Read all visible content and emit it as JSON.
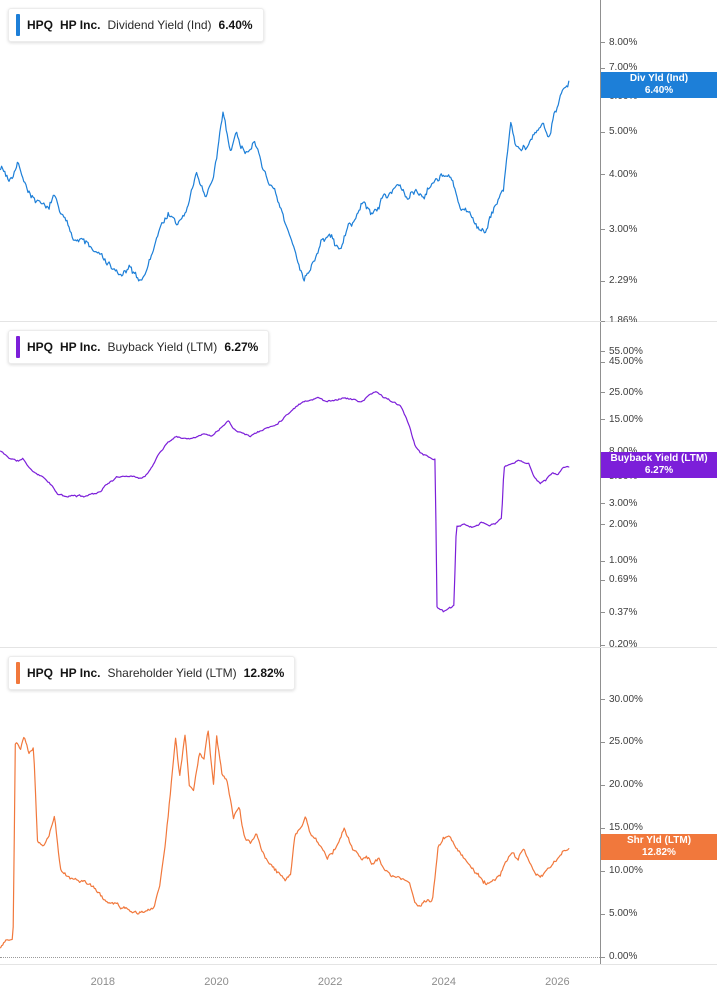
{
  "x_axis": {
    "labels": [
      "2018",
      "2020",
      "2022",
      "2024",
      "2026"
    ],
    "values": [
      2018,
      2020,
      2022,
      2024,
      2026
    ]
  },
  "panels": [
    {
      "legend": {
        "ticker": "HPQ",
        "company": "HP Inc.",
        "metric": "Dividend Yield (Ind)",
        "value": "6.40%"
      },
      "badge": {
        "line1": "Div Yld (Ind)",
        "line2": "6.40%"
      }
    },
    {
      "legend": {
        "ticker": "HPQ",
        "company": "HP Inc.",
        "metric": "Buyback Yield (LTM)",
        "value": "6.27%"
      },
      "badge": {
        "line1": "Buyback Yield (LTM)",
        "line2": "6.27%"
      }
    },
    {
      "legend": {
        "ticker": "HPQ",
        "company": "HP Inc.",
        "metric": "Shareholder Yield (LTM)",
        "value": "12.82%"
      },
      "badge": {
        "line1": "Shr Yld (LTM)",
        "line2": "12.82%"
      }
    }
  ],
  "chart_data": [
    {
      "type": "line",
      "name": "dividend-yield-ind",
      "title": "HPQ HP Inc. Dividend Yield (Ind)",
      "scale": "log",
      "color": "#1d7fd8",
      "x_range": [
        2016.19,
        2026.75
      ],
      "ylim": [
        1.86,
        10.0
      ],
      "last_value": 6.4,
      "ticks": {
        "values": [
          8,
          7,
          6,
          5,
          4,
          3,
          2.29,
          1.86
        ],
        "labels": [
          "8.00%",
          "7.00%",
          "6.00%",
          "5.00%",
          "4.00%",
          "3.00%",
          "2.29%",
          "1.86%"
        ]
      },
      "noise": 0.012,
      "seed": 7,
      "samples": 540,
      "anchors": [
        [
          2016.2,
          4.2
        ],
        [
          2016.35,
          3.9
        ],
        [
          2016.5,
          4.3
        ],
        [
          2016.65,
          3.8
        ],
        [
          2016.8,
          3.5
        ],
        [
          2017.0,
          3.3
        ],
        [
          2017.15,
          3.55
        ],
        [
          2017.3,
          3.2
        ],
        [
          2017.5,
          2.9
        ],
        [
          2017.7,
          2.8
        ],
        [
          2017.9,
          2.65
        ],
        [
          2018.1,
          2.5
        ],
        [
          2018.3,
          2.35
        ],
        [
          2018.5,
          2.42
        ],
        [
          2018.65,
          2.28
        ],
        [
          2018.8,
          2.5
        ],
        [
          2019.0,
          3.0
        ],
        [
          2019.15,
          3.3
        ],
        [
          2019.3,
          3.05
        ],
        [
          2019.5,
          3.4
        ],
        [
          2019.65,
          4.0
        ],
        [
          2019.8,
          3.6
        ],
        [
          2019.95,
          3.9
        ],
        [
          2020.12,
          5.5
        ],
        [
          2020.25,
          4.6
        ],
        [
          2020.35,
          5.0
        ],
        [
          2020.5,
          4.5
        ],
        [
          2020.65,
          4.8
        ],
        [
          2020.8,
          4.2
        ],
        [
          2021.0,
          3.7
        ],
        [
          2021.2,
          3.1
        ],
        [
          2021.4,
          2.6
        ],
        [
          2021.55,
          2.35
        ],
        [
          2021.7,
          2.55
        ],
        [
          2021.85,
          2.8
        ],
        [
          2022.0,
          2.9
        ],
        [
          2022.15,
          2.7
        ],
        [
          2022.3,
          3.0
        ],
        [
          2022.45,
          3.2
        ],
        [
          2022.6,
          3.45
        ],
        [
          2022.75,
          3.25
        ],
        [
          2022.9,
          3.5
        ],
        [
          2023.05,
          3.65
        ],
        [
          2023.2,
          3.85
        ],
        [
          2023.35,
          3.5
        ],
        [
          2023.5,
          3.7
        ],
        [
          2023.65,
          3.6
        ],
        [
          2023.8,
          3.9
        ],
        [
          2024.0,
          4.05
        ],
        [
          2024.15,
          3.85
        ],
        [
          2024.3,
          3.3
        ],
        [
          2024.45,
          3.25
        ],
        [
          2024.6,
          3.05
        ],
        [
          2024.75,
          2.95
        ],
        [
          2024.9,
          3.4
        ],
        [
          2025.05,
          3.7
        ],
        [
          2025.18,
          5.3
        ],
        [
          2025.28,
          4.6
        ],
        [
          2025.45,
          4.5
        ],
        [
          2025.6,
          4.9
        ],
        [
          2025.75,
          5.25
        ],
        [
          2025.85,
          5.0
        ],
        [
          2025.95,
          5.6
        ],
        [
          2026.05,
          6.1
        ],
        [
          2026.2,
          6.4
        ]
      ]
    },
    {
      "type": "line",
      "name": "buyback-yield-ltm",
      "title": "HPQ HP Inc. Buyback Yield (LTM)",
      "scale": "log",
      "color": "#7c1fd9",
      "x_range": [
        2016.19,
        2026.75
      ],
      "ylim": [
        0.193,
        97.0
      ],
      "last_value": 6.27,
      "ticks": {
        "values": [
          55,
          45,
          25,
          15,
          8,
          5,
          3,
          2,
          1,
          0.69,
          0.37,
          0.2
        ],
        "labels": [
          "55.00%",
          "45.00%",
          "25.00%",
          "15.00%",
          "8.00%",
          "5.00%",
          "3.00%",
          "2.00%",
          "1.00%",
          "0.69%",
          "0.37%",
          "0.20%"
        ]
      },
      "noise": 0.011,
      "seed": 11,
      "samples": 540,
      "anchors": [
        [
          2016.2,
          8.2
        ],
        [
          2016.35,
          7.2
        ],
        [
          2016.5,
          6.8
        ],
        [
          2016.6,
          7.0
        ],
        [
          2016.75,
          5.6
        ],
        [
          2016.9,
          5.2
        ],
        [
          2017.05,
          4.6
        ],
        [
          2017.2,
          3.6
        ],
        [
          2017.35,
          3.4
        ],
        [
          2017.5,
          3.5
        ],
        [
          2017.65,
          3.45
        ],
        [
          2017.8,
          3.6
        ],
        [
          2017.95,
          3.8
        ],
        [
          2018.1,
          4.5
        ],
        [
          2018.25,
          4.9
        ],
        [
          2018.4,
          5.2
        ],
        [
          2018.55,
          5.05
        ],
        [
          2018.7,
          4.9
        ],
        [
          2018.85,
          5.8
        ],
        [
          2019.0,
          8.0
        ],
        [
          2019.15,
          9.8
        ],
        [
          2019.3,
          11.0
        ],
        [
          2019.45,
          10.4
        ],
        [
          2019.6,
          10.8
        ],
        [
          2019.75,
          11.5
        ],
        [
          2019.9,
          11.0
        ],
        [
          2020.05,
          12.5
        ],
        [
          2020.2,
          15.0
        ],
        [
          2020.3,
          12.8
        ],
        [
          2020.45,
          11.8
        ],
        [
          2020.6,
          11.0
        ],
        [
          2020.75,
          12.0
        ],
        [
          2020.9,
          12.8
        ],
        [
          2021.05,
          13.5
        ],
        [
          2021.2,
          16.0
        ],
        [
          2021.35,
          18.5
        ],
        [
          2021.5,
          21.0
        ],
        [
          2021.65,
          22.0
        ],
        [
          2021.8,
          22.8
        ],
        [
          2021.95,
          21.2
        ],
        [
          2022.1,
          22.0
        ],
        [
          2022.25,
          23.0
        ],
        [
          2022.4,
          22.0
        ],
        [
          2022.55,
          21.0
        ],
        [
          2022.7,
          24.0
        ],
        [
          2022.8,
          25.5
        ],
        [
          2022.95,
          23.0
        ],
        [
          2023.1,
          21.0
        ],
        [
          2023.25,
          19.0
        ],
        [
          2023.4,
          13.0
        ],
        [
          2023.5,
          9.0
        ],
        [
          2023.6,
          8.0
        ],
        [
          2023.75,
          7.2
        ],
        [
          2023.85,
          7.0
        ],
        [
          2023.88,
          0.42
        ],
        [
          2024.0,
          0.38
        ],
        [
          2024.1,
          0.4
        ],
        [
          2024.18,
          0.42
        ],
        [
          2024.22,
          1.9
        ],
        [
          2024.35,
          2.0
        ],
        [
          2024.5,
          1.85
        ],
        [
          2024.65,
          2.1
        ],
        [
          2024.8,
          1.95
        ],
        [
          2024.95,
          2.1
        ],
        [
          2025.02,
          2.3
        ],
        [
          2025.06,
          6.0
        ],
        [
          2025.2,
          6.5
        ],
        [
          2025.35,
          6.8
        ],
        [
          2025.5,
          6.4
        ],
        [
          2025.6,
          5.0
        ],
        [
          2025.7,
          4.4
        ],
        [
          2025.8,
          4.8
        ],
        [
          2025.9,
          5.4
        ],
        [
          2026.0,
          5.2
        ],
        [
          2026.1,
          5.9
        ],
        [
          2026.2,
          6.27
        ]
      ]
    },
    {
      "type": "line",
      "name": "shareholder-yield-ltm",
      "title": "HPQ HP Inc. Shareholder Yield (LTM)",
      "scale": "linear",
      "color": "#f1783c",
      "x_range": [
        2016.19,
        2026.75
      ],
      "ylim": [
        -0.8,
        36.0
      ],
      "last_value": 12.82,
      "zero_line": 0,
      "ticks": {
        "values": [
          30,
          25,
          20,
          15,
          10,
          5,
          0
        ],
        "labels": [
          "30.00%",
          "25.00%",
          "20.00%",
          "15.00%",
          "10.00%",
          "5.00%",
          "0.00%"
        ]
      },
      "noise": 0.32,
      "seed": 23,
      "samples": 540,
      "anchors": [
        [
          2016.2,
          1.3
        ],
        [
          2016.3,
          2.0
        ],
        [
          2016.42,
          1.8
        ],
        [
          2016.46,
          25.0
        ],
        [
          2016.55,
          24.0
        ],
        [
          2016.62,
          25.6
        ],
        [
          2016.7,
          23.5
        ],
        [
          2016.78,
          24.5
        ],
        [
          2016.85,
          13.5
        ],
        [
          2016.95,
          13.0
        ],
        [
          2017.05,
          14.0
        ],
        [
          2017.15,
          16.3
        ],
        [
          2017.25,
          10.5
        ],
        [
          2017.4,
          9.5
        ],
        [
          2017.55,
          9.0
        ],
        [
          2017.7,
          8.6
        ],
        [
          2017.85,
          8.2
        ],
        [
          2018.0,
          6.8
        ],
        [
          2018.15,
          6.2
        ],
        [
          2018.3,
          5.8
        ],
        [
          2018.45,
          5.4
        ],
        [
          2018.6,
          5.2
        ],
        [
          2018.75,
          5.5
        ],
        [
          2018.9,
          5.8
        ],
        [
          2019.0,
          8.5
        ],
        [
          2019.1,
          13.5
        ],
        [
          2019.2,
          20.0
        ],
        [
          2019.28,
          25.5
        ],
        [
          2019.35,
          21.0
        ],
        [
          2019.45,
          26.0
        ],
        [
          2019.52,
          20.0
        ],
        [
          2019.6,
          19.5
        ],
        [
          2019.7,
          24.0
        ],
        [
          2019.78,
          23.0
        ],
        [
          2019.85,
          26.5
        ],
        [
          2019.95,
          19.5
        ],
        [
          2020.0,
          25.8
        ],
        [
          2020.1,
          21.0
        ],
        [
          2020.2,
          20.0
        ],
        [
          2020.3,
          16.2
        ],
        [
          2020.4,
          17.8
        ],
        [
          2020.5,
          13.8
        ],
        [
          2020.6,
          13.0
        ],
        [
          2020.7,
          14.4
        ],
        [
          2020.8,
          12.4
        ],
        [
          2020.9,
          11.2
        ],
        [
          2021.0,
          10.6
        ],
        [
          2021.1,
          9.8
        ],
        [
          2021.2,
          9.1
        ],
        [
          2021.3,
          9.6
        ],
        [
          2021.38,
          14.2
        ],
        [
          2021.5,
          15.4
        ],
        [
          2021.57,
          16.2
        ],
        [
          2021.65,
          14.4
        ],
        [
          2021.75,
          13.8
        ],
        [
          2021.85,
          12.8
        ],
        [
          2021.95,
          11.6
        ],
        [
          2022.05,
          12.2
        ],
        [
          2022.15,
          13.6
        ],
        [
          2022.25,
          15.2
        ],
        [
          2022.35,
          13.2
        ],
        [
          2022.45,
          12.2
        ],
        [
          2022.55,
          11.4
        ],
        [
          2022.65,
          11.8
        ],
        [
          2022.75,
          10.6
        ],
        [
          2022.85,
          11.2
        ],
        [
          2022.95,
          10.2
        ],
        [
          2023.1,
          9.6
        ],
        [
          2023.25,
          9.2
        ],
        [
          2023.4,
          8.8
        ],
        [
          2023.5,
          6.4
        ],
        [
          2023.6,
          5.8
        ],
        [
          2023.7,
          6.2
        ],
        [
          2023.8,
          6.6
        ],
        [
          2023.9,
          12.6
        ],
        [
          2024.0,
          13.6
        ],
        [
          2024.1,
          14.2
        ],
        [
          2024.2,
          13.0
        ],
        [
          2024.3,
          12.2
        ],
        [
          2024.4,
          11.2
        ],
        [
          2024.5,
          10.6
        ],
        [
          2024.6,
          9.6
        ],
        [
          2024.7,
          8.8
        ],
        [
          2024.8,
          8.6
        ],
        [
          2024.9,
          9.2
        ],
        [
          2025.0,
          9.6
        ],
        [
          2025.08,
          11.2
        ],
        [
          2025.2,
          12.0
        ],
        [
          2025.3,
          11.4
        ],
        [
          2025.4,
          12.4
        ],
        [
          2025.5,
          11.0
        ],
        [
          2025.6,
          9.6
        ],
        [
          2025.7,
          9.2
        ],
        [
          2025.8,
          9.8
        ],
        [
          2025.9,
          10.8
        ],
        [
          2026.0,
          11.6
        ],
        [
          2026.1,
          12.3
        ],
        [
          2026.2,
          12.82
        ]
      ]
    }
  ]
}
